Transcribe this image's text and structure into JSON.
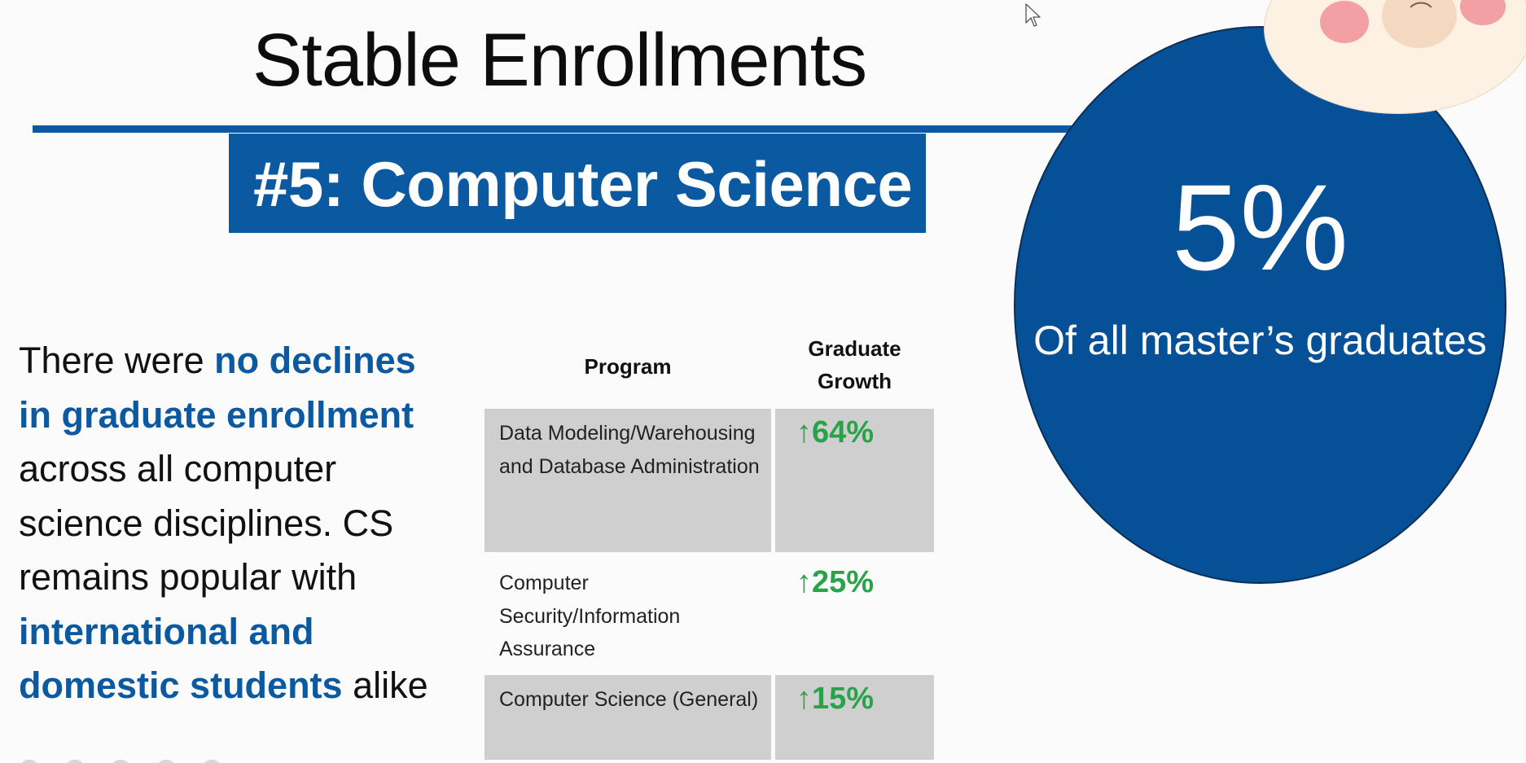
{
  "slide": {
    "title": "Stable Enrollments",
    "banner": "#5: Computer Science"
  },
  "callout": {
    "value": "5%",
    "caption": "Of all master’s graduates"
  },
  "body": {
    "part1": "There were ",
    "highlight1": "no declines in graduate enrollment",
    "part2": " across all computer science disciplines. CS remains popular with ",
    "highlight2": "international and domestic students",
    "part3": " alike"
  },
  "table": {
    "headers": {
      "program": "Program",
      "growth": "Graduate Growth"
    },
    "rows": [
      {
        "program": "Data Modeling/Warehousing and Database Administration",
        "growth": "↑64%"
      },
      {
        "program": "Computer Security/Information Assurance",
        "growth": "↑25%"
      },
      {
        "program": "Computer Science (General)",
        "growth": "↑15%"
      }
    ]
  },
  "colors": {
    "accent": "#0b5aa1",
    "circle": "#065097",
    "growth": "#28a34a",
    "row_shade": "#cfcfcf"
  },
  "icons": [
    "mouse-cursor-icon",
    "mascot-face-icon",
    "up-arrow-icon"
  ]
}
